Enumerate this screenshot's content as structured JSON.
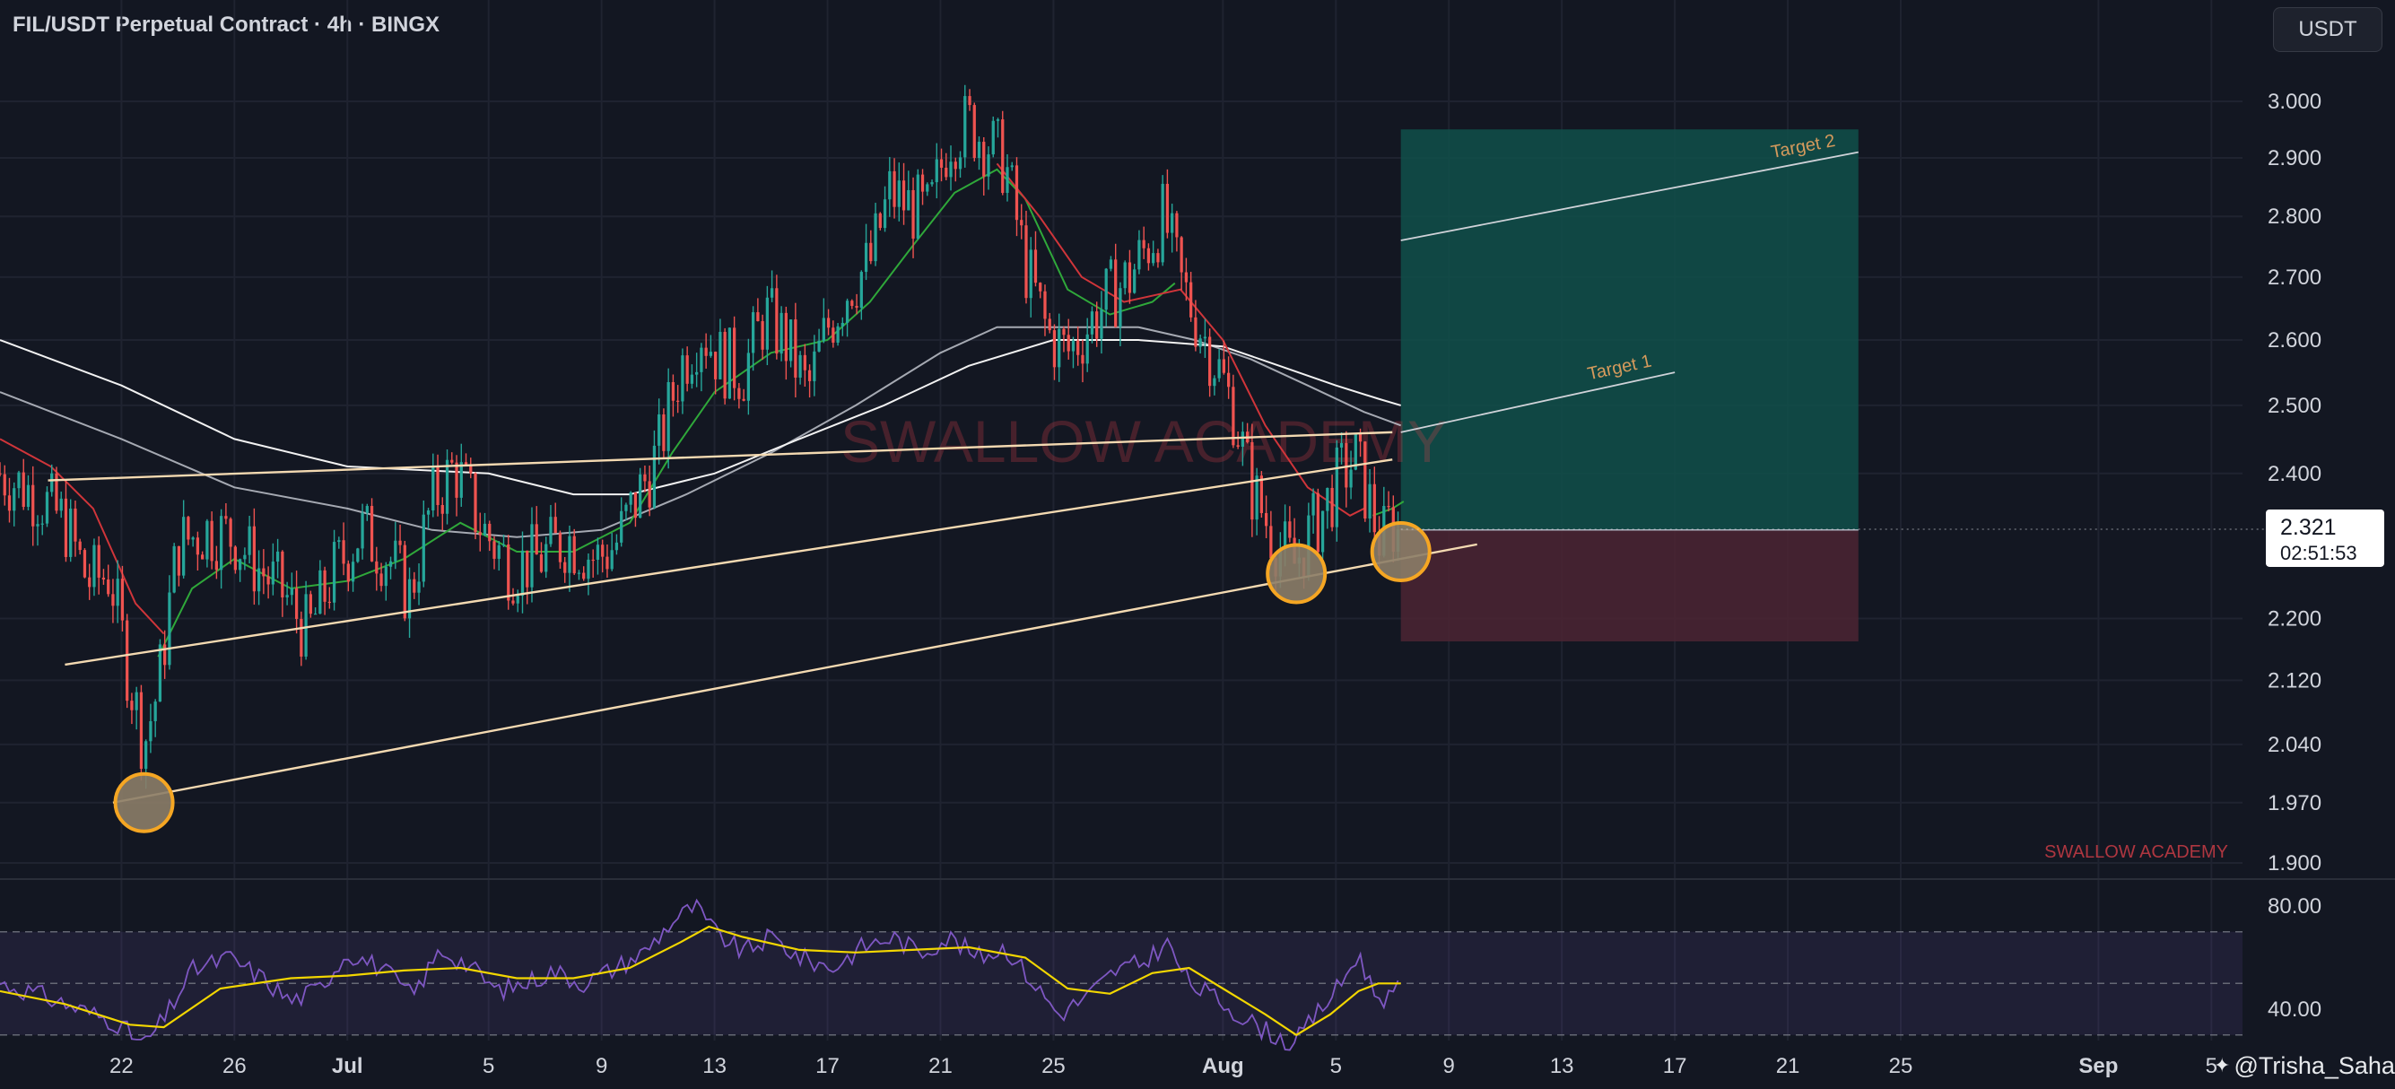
{
  "header": {
    "title": "FIL/USDT Perpetual Contract · 4h · BINGX",
    "currency": "USDT"
  },
  "credit": {
    "icon": "tradingview-icon",
    "text": "@Trisha_Saha"
  },
  "colors": {
    "background": "#131722",
    "grid": "#1f2330",
    "up": "#26a69a",
    "down": "#ef5350",
    "channel": "#f3d9b1",
    "target_line": "#cfd2d8",
    "target_label": "#d59a5c",
    "circle_fill": "#8c7d68",
    "circle_stroke": "#f5a623",
    "profit_zone": "#11504a",
    "loss_zone": "#4c2532",
    "ema_green": "#2fa83a",
    "ema_red": "#d0353a",
    "ma_white": "#f2f2f2",
    "ma_grey": "#bfc3cb",
    "rsi": "#7e57c2",
    "rsi_ma": "#f2d600",
    "watermark": "#e2414a"
  },
  "chart_data": {
    "type": "candlestick",
    "title": "FIL/USDT Perpetual Contract · 4h · BINGX",
    "timeframe": "4h",
    "exchange": "BINGX",
    "y_axis": {
      "ticks": [
        1.9,
        1.97,
        2.04,
        2.12,
        2.2,
        2.4,
        2.5,
        2.6,
        2.7,
        2.8,
        2.9,
        3.0
      ],
      "tick_labels": [
        "1.900",
        "1.970",
        "2.040",
        "2.120",
        "2.200",
        "2.400",
        "2.500",
        "2.600",
        "2.700",
        "2.800",
        "2.900",
        "3.000"
      ],
      "scale": "logarithmic",
      "range": [
        1.88,
        3.05
      ]
    },
    "x_axis": {
      "ticks": [
        {
          "label": "22",
          "day": 22
        },
        {
          "label": "26",
          "day": 26
        },
        {
          "label": "Jul",
          "day": 30
        },
        {
          "label": "5",
          "day": 35
        },
        {
          "label": "9",
          "day": 39
        },
        {
          "label": "13",
          "day": 43
        },
        {
          "label": "17",
          "day": 47
        },
        {
          "label": "21",
          "day": 51
        },
        {
          "label": "25",
          "day": 55
        },
        {
          "label": "Aug",
          "day": 61
        },
        {
          "label": "5",
          "day": 65
        },
        {
          "label": "9",
          "day": 69
        },
        {
          "label": "13",
          "day": 73
        },
        {
          "label": "17",
          "day": 77
        },
        {
          "label": "21",
          "day": 81
        },
        {
          "label": "25",
          "day": 85
        },
        {
          "label": "Sep",
          "day": 92
        },
        {
          "label": "5",
          "day": 96
        }
      ],
      "range": [
        17.7,
        102.5
      ]
    },
    "current_price": {
      "value": 2.321,
      "label": "2.321",
      "countdown": "02:51:53"
    },
    "price_path": [
      [
        17.7,
        2.4
      ],
      [
        19.0,
        2.37
      ],
      [
        20.0,
        2.33
      ],
      [
        20.8,
        2.25
      ],
      [
        21.6,
        2.26
      ],
      [
        22.3,
        2.12
      ],
      [
        22.8,
        2.04
      ],
      [
        23.3,
        2.11
      ],
      [
        24.0,
        2.3
      ],
      [
        25.0,
        2.32
      ],
      [
        26.0,
        2.31
      ],
      [
        26.8,
        2.27
      ],
      [
        27.8,
        2.23
      ],
      [
        28.6,
        2.18
      ],
      [
        29.5,
        2.26
      ],
      [
        30.5,
        2.32
      ],
      [
        31.5,
        2.28
      ],
      [
        32.2,
        2.23
      ],
      [
        33.0,
        2.36
      ],
      [
        33.8,
        2.41
      ],
      [
        34.8,
        2.32
      ],
      [
        35.8,
        2.27
      ],
      [
        36.8,
        2.28
      ],
      [
        37.8,
        2.31
      ],
      [
        38.8,
        2.28
      ],
      [
        39.5,
        2.3
      ],
      [
        40.2,
        2.36
      ],
      [
        41.0,
        2.43
      ],
      [
        41.8,
        2.56
      ],
      [
        42.5,
        2.62
      ],
      [
        43.2,
        2.57
      ],
      [
        44.0,
        2.55
      ],
      [
        44.8,
        2.64
      ],
      [
        45.5,
        2.6
      ],
      [
        46.3,
        2.52
      ],
      [
        47.0,
        2.62
      ],
      [
        47.8,
        2.69
      ],
      [
        48.5,
        2.72
      ],
      [
        49.2,
        2.84
      ],
      [
        49.8,
        2.82
      ],
      [
        50.6,
        2.8
      ],
      [
        51.3,
        2.94
      ],
      [
        52.0,
        2.96
      ],
      [
        52.8,
        2.92
      ],
      [
        53.3,
        2.89
      ],
      [
        54.0,
        2.72
      ],
      [
        54.8,
        2.61
      ],
      [
        55.5,
        2.58
      ],
      [
        56.2,
        2.62
      ],
      [
        57.0,
        2.67
      ],
      [
        57.7,
        2.7
      ],
      [
        58.3,
        2.75
      ],
      [
        58.9,
        2.8
      ],
      [
        59.5,
        2.69
      ],
      [
        60.2,
        2.62
      ],
      [
        60.8,
        2.56
      ],
      [
        61.4,
        2.49
      ],
      [
        62.0,
        2.38
      ],
      [
        62.8,
        2.31
      ],
      [
        63.5,
        2.27
      ],
      [
        64.0,
        2.31
      ],
      [
        64.6,
        2.35
      ],
      [
        65.2,
        2.4
      ],
      [
        65.7,
        2.42
      ],
      [
        66.1,
        2.37
      ],
      [
        66.6,
        2.3
      ],
      [
        66.9,
        2.33
      ],
      [
        67.3,
        2.321
      ]
    ],
    "indicators": {
      "ema_fast": [
        [
          23.3,
          2.15
        ],
        [
          24.5,
          2.24
        ],
        [
          26.0,
          2.28
        ],
        [
          28.0,
          2.24
        ],
        [
          30.0,
          2.25
        ],
        [
          32.0,
          2.28
        ],
        [
          34.0,
          2.33
        ],
        [
          36.0,
          2.29
        ],
        [
          38.0,
          2.29
        ],
        [
          40.0,
          2.33
        ],
        [
          41.5,
          2.43
        ],
        [
          43.0,
          2.52
        ],
        [
          45.0,
          2.58
        ],
        [
          47.0,
          2.6
        ],
        [
          48.5,
          2.66
        ],
        [
          50.0,
          2.75
        ],
        [
          51.5,
          2.84
        ],
        [
          53.0,
          2.88
        ],
        [
          54.0,
          2.83
        ],
        [
          55.5,
          2.68
        ],
        [
          57.0,
          2.64
        ],
        [
          58.5,
          2.66
        ],
        [
          59.3,
          2.69
        ]
      ],
      "ema_red_down": [
        [
          17.7,
          2.45
        ],
        [
          19.5,
          2.41
        ],
        [
          21.0,
          2.35
        ],
        [
          22.5,
          2.22
        ],
        [
          23.5,
          2.18
        ]
      ],
      "ema_red_fall": [
        [
          53.0,
          2.89
        ],
        [
          54.5,
          2.8
        ],
        [
          56.0,
          2.7
        ],
        [
          57.5,
          2.66
        ],
        [
          59.5,
          2.68
        ],
        [
          61.0,
          2.6
        ],
        [
          62.5,
          2.47
        ],
        [
          64.0,
          2.38
        ],
        [
          65.5,
          2.34
        ],
        [
          66.0,
          2.35
        ]
      ],
      "ema_green_recent": [
        [
          66.3,
          2.34
        ],
        [
          67.0,
          2.35
        ],
        [
          67.4,
          2.36
        ]
      ],
      "ma_white": [
        [
          17.7,
          2.6
        ],
        [
          22.0,
          2.53
        ],
        [
          26.0,
          2.45
        ],
        [
          30.0,
          2.41
        ],
        [
          35.0,
          2.4
        ],
        [
          38.0,
          2.37
        ],
        [
          40.0,
          2.37
        ],
        [
          43.0,
          2.4
        ],
        [
          46.0,
          2.45
        ],
        [
          49.0,
          2.5
        ],
        [
          52.0,
          2.56
        ],
        [
          55.0,
          2.6
        ],
        [
          58.0,
          2.6
        ],
        [
          61.0,
          2.59
        ],
        [
          63.0,
          2.56
        ],
        [
          65.0,
          2.53
        ],
        [
          66.5,
          2.51
        ],
        [
          67.3,
          2.5
        ]
      ],
      "ma_grey": [
        [
          17.7,
          2.52
        ],
        [
          22.0,
          2.45
        ],
        [
          26.0,
          2.38
        ],
        [
          30.0,
          2.35
        ],
        [
          33.0,
          2.32
        ],
        [
          36.0,
          2.31
        ],
        [
          39.0,
          2.32
        ],
        [
          42.0,
          2.37
        ],
        [
          45.0,
          2.43
        ],
        [
          48.0,
          2.5
        ],
        [
          51.0,
          2.58
        ],
        [
          53.0,
          2.62
        ],
        [
          56.0,
          2.62
        ],
        [
          58.0,
          2.62
        ],
        [
          60.0,
          2.6
        ],
        [
          62.0,
          2.57
        ],
        [
          64.0,
          2.53
        ],
        [
          66.0,
          2.49
        ],
        [
          67.3,
          2.47
        ]
      ]
    },
    "channel_lines": [
      {
        "name": "",
        "from": [
          19.4,
          2.39
        ],
        "to": [
          67.0,
          2.46
        ]
      },
      {
        "name": "",
        "from": [
          20.0,
          2.14
        ],
        "to": [
          67.0,
          2.42
        ]
      },
      {
        "name": "",
        "from": [
          21.7,
          1.97
        ],
        "to": [
          70.0,
          2.3
        ]
      }
    ],
    "targets": [
      {
        "label": "Target 1",
        "from": [
          67.3,
          2.46
        ],
        "to": [
          77.0,
          2.55
        ]
      },
      {
        "label": "Target 2",
        "from": [
          67.3,
          2.76
        ],
        "to": [
          83.5,
          2.91
        ]
      }
    ],
    "position": {
      "entry": 2.32,
      "take_profit": 2.95,
      "stop_loss": 2.17,
      "x_range": [
        67.3,
        83.5
      ]
    },
    "highlight_points": [
      {
        "day": 22.8,
        "price": 1.97
      },
      {
        "day": 63.6,
        "price": 2.26
      },
      {
        "day": 67.3,
        "price": 2.29
      }
    ],
    "watermarks": [
      "SWALLOW ACADEMY",
      "SWALLOW ACADEMY"
    ],
    "rsi": {
      "y_ticks": [
        40,
        80
      ],
      "y_tick_labels": [
        "40.00",
        "80.00"
      ],
      "band": [
        30,
        70
      ],
      "mid": 50,
      "range": [
        20,
        90
      ],
      "values": [
        [
          17.7,
          50
        ],
        [
          19.0,
          46
        ],
        [
          20.5,
          40
        ],
        [
          21.8,
          35
        ],
        [
          22.8,
          26
        ],
        [
          23.5,
          36
        ],
        [
          24.5,
          55
        ],
        [
          25.8,
          60
        ],
        [
          27.0,
          52
        ],
        [
          28.0,
          43
        ],
        [
          29.0,
          48
        ],
        [
          30.0,
          62
        ],
        [
          31.2,
          56
        ],
        [
          32.3,
          45
        ],
        [
          33.3,
          63
        ],
        [
          34.3,
          57
        ],
        [
          35.3,
          47
        ],
        [
          36.3,
          50
        ],
        [
          37.3,
          55
        ],
        [
          38.3,
          50
        ],
        [
          39.3,
          55
        ],
        [
          40.5,
          62
        ],
        [
          41.5,
          74
        ],
        [
          42.3,
          80
        ],
        [
          43.0,
          70
        ],
        [
          44.0,
          62
        ],
        [
          45.0,
          68
        ],
        [
          46.0,
          60
        ],
        [
          47.2,
          56
        ],
        [
          48.2,
          64
        ],
        [
          49.3,
          68
        ],
        [
          50.3,
          62
        ],
        [
          51.3,
          68
        ],
        [
          52.3,
          60
        ],
        [
          53.3,
          64
        ],
        [
          54.3,
          50
        ],
        [
          55.2,
          38
        ],
        [
          56.2,
          45
        ],
        [
          57.2,
          55
        ],
        [
          58.2,
          58
        ],
        [
          59.0,
          66
        ],
        [
          59.8,
          50
        ],
        [
          60.8,
          44
        ],
        [
          61.8,
          36
        ],
        [
          62.8,
          30
        ],
        [
          63.5,
          26
        ],
        [
          64.3,
          38
        ],
        [
          65.2,
          50
        ],
        [
          65.8,
          62
        ],
        [
          66.3,
          47
        ],
        [
          66.8,
          44
        ],
        [
          67.3,
          48
        ]
      ],
      "ma": [
        [
          17.7,
          47
        ],
        [
          20.0,
          42
        ],
        [
          22.3,
          34
        ],
        [
          23.5,
          33
        ],
        [
          25.5,
          48
        ],
        [
          28.0,
          52
        ],
        [
          30.0,
          53
        ],
        [
          32.0,
          55
        ],
        [
          34.0,
          56
        ],
        [
          36.0,
          52
        ],
        [
          38.0,
          52
        ],
        [
          40.0,
          56
        ],
        [
          41.8,
          66
        ],
        [
          42.8,
          72
        ],
        [
          44.0,
          68
        ],
        [
          46.0,
          63
        ],
        [
          48.0,
          62
        ],
        [
          50.0,
          63
        ],
        [
          52.0,
          64
        ],
        [
          54.0,
          60
        ],
        [
          55.5,
          48
        ],
        [
          57.0,
          46
        ],
        [
          58.5,
          54
        ],
        [
          59.8,
          56
        ],
        [
          61.0,
          48
        ],
        [
          62.5,
          38
        ],
        [
          63.6,
          30
        ],
        [
          64.8,
          38
        ],
        [
          65.8,
          47
        ],
        [
          66.5,
          50
        ],
        [
          67.3,
          50
        ]
      ]
    }
  }
}
